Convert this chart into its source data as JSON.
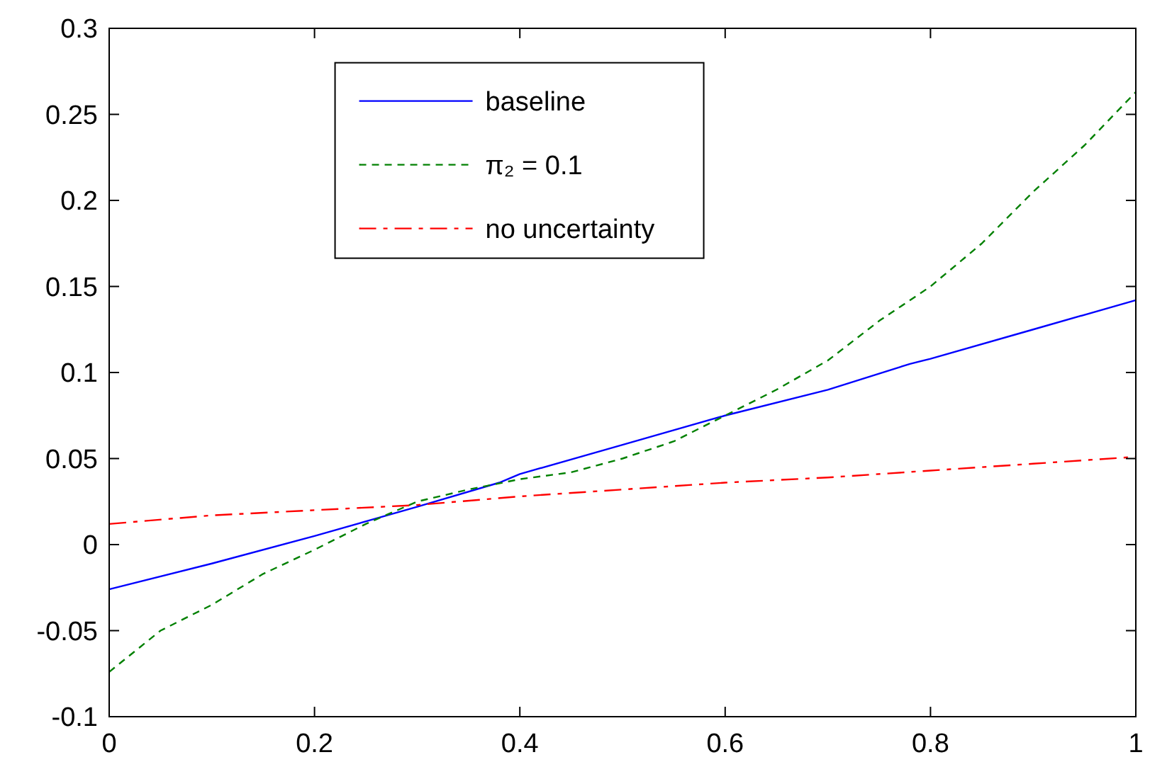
{
  "chart_data": {
    "type": "line",
    "xlim": [
      0,
      1
    ],
    "ylim": [
      -0.1,
      0.3
    ],
    "xticks": [
      0,
      0.2,
      0.4,
      0.6,
      0.8,
      {
        "value": 1,
        "label": "1"
      }
    ],
    "yticks": [
      -0.1,
      -0.05,
      0,
      0.05,
      0.1,
      0.15,
      0.2,
      0.25,
      0.3
    ],
    "grid": false,
    "legend": "top",
    "marker": "none",
    "series": [
      {
        "name": "baseline",
        "color": "#0000ff",
        "line_style": "solid",
        "x": [
          0,
          0.1,
          0.2,
          0.3,
          0.38,
          0.4,
          0.5,
          0.6,
          0.7,
          0.78,
          0.8,
          0.9,
          1
        ],
        "values": [
          -0.026,
          -0.011,
          0.005,
          0.022,
          0.036,
          0.041,
          0.058,
          0.075,
          0.09,
          0.105,
          0.108,
          0.125,
          0.142
        ]
      },
      {
        "name": "π₂ = 0.1",
        "color": "#008000",
        "line_style": "dashed",
        "x": [
          0,
          0.05,
          0.1,
          0.15,
          0.2,
          0.25,
          0.3,
          0.35,
          0.4,
          0.45,
          0.5,
          0.55,
          0.6,
          0.65,
          0.7,
          0.75,
          0.8,
          0.85,
          0.9,
          0.95,
          1
        ],
        "values": [
          -0.074,
          -0.05,
          -0.035,
          -0.017,
          -0.003,
          0.012,
          0.025,
          0.032,
          0.038,
          0.042,
          0.05,
          0.06,
          0.075,
          0.09,
          0.107,
          0.13,
          0.15,
          0.175,
          0.205,
          0.232,
          0.263
        ]
      },
      {
        "name": "no uncertainty",
        "color": "#ff0000",
        "line_style": "dashdot",
        "x": [
          0,
          0.1,
          0.2,
          0.3,
          0.4,
          0.5,
          0.6,
          0.7,
          0.8,
          0.9,
          1
        ],
        "values": [
          0.012,
          0.017,
          0.02,
          0.023,
          0.028,
          0.032,
          0.036,
          0.039,
          0.043,
          0.047,
          0.051
        ]
      }
    ]
  }
}
